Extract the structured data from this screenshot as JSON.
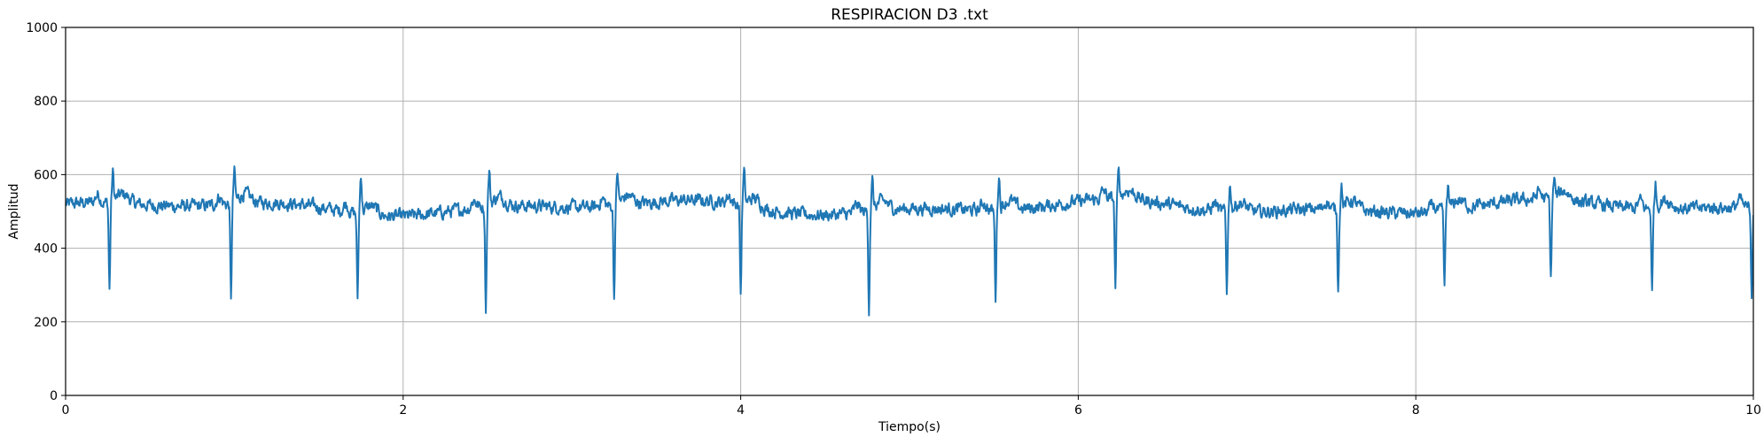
{
  "chart_data": {
    "type": "line",
    "title": "RESPIRACION  D3 .txt",
    "xlabel": "Tiempo(s)",
    "ylabel": "Amplitud",
    "xlim": [
      0,
      10
    ],
    "ylim": [
      0,
      1000
    ],
    "xticks": [
      0,
      2,
      4,
      6,
      8,
      10
    ],
    "yticks": [
      0,
      200,
      400,
      600,
      800,
      1000
    ],
    "grid": true,
    "line_color": "#1f77b4",
    "baseline": 510,
    "beats": [
      {
        "t": 0.26,
        "trough": 270,
        "peak": 607
      },
      {
        "t": 0.98,
        "trough": 250,
        "peak": 612
      },
      {
        "t": 1.73,
        "trough": 275,
        "peak": 633
      },
      {
        "t": 2.49,
        "trough": 232,
        "peak": 620
      },
      {
        "t": 3.25,
        "trough": 260,
        "peak": 615
      },
      {
        "t": 4.0,
        "trough": 265,
        "peak": 615
      },
      {
        "t": 4.76,
        "trough": 245,
        "peak": 607
      },
      {
        "t": 5.51,
        "trough": 272,
        "peak": 618
      },
      {
        "t": 6.22,
        "trough": 268,
        "peak": 600
      },
      {
        "t": 6.88,
        "trough": 288,
        "peak": 600
      },
      {
        "t": 7.54,
        "trough": 290,
        "peak": 590
      },
      {
        "t": 8.17,
        "trough": 295,
        "peak": 590
      },
      {
        "t": 8.8,
        "trough": 290,
        "peak": 580
      },
      {
        "t": 9.4,
        "trough": 282,
        "peak": 595
      },
      {
        "t": 9.99,
        "trough": 278,
        "peak": 560
      }
    ]
  }
}
